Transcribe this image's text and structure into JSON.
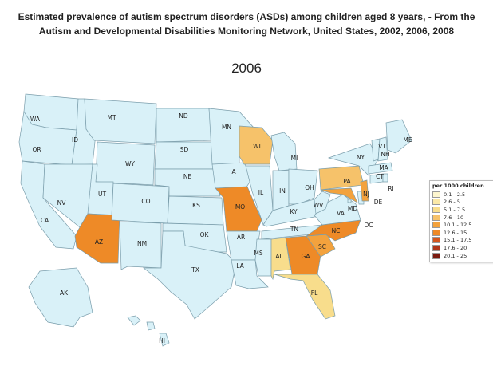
{
  "title": {
    "line1": "Estimated prevalence of autism spectrum disorders (ASDs) among children aged 8 years, - From the",
    "line2": "Autism and Developmental Disabilities Monitoring Network, United States, 2002, 2006, 2008"
  },
  "year": "2006",
  "colors": {
    "no_data": "#d9f1f8",
    "border": "#7a9dab",
    "sea": "#ffffff"
  },
  "legend": {
    "title": "per 1000 children",
    "items": [
      {
        "label": "0.1 - 2.5",
        "color": "#fdf6cf"
      },
      {
        "label": "2.6 - 5",
        "color": "#fbe9a7"
      },
      {
        "label": "5.1 - 7.5",
        "color": "#f8dd8c"
      },
      {
        "label": "7.6 - 10",
        "color": "#f6c26a"
      },
      {
        "label": "10.1 - 12.5",
        "color": "#f3a23d"
      },
      {
        "label": "12.6 - 15",
        "color": "#ee8a27"
      },
      {
        "label": "15.1 - 17.5",
        "color": "#d4561e"
      },
      {
        "label": "17.6 - 20",
        "color": "#b0361a"
      },
      {
        "label": "20.1 - 25",
        "color": "#7a1b10"
      }
    ]
  },
  "states": [
    {
      "abbr": "WA",
      "value_class": null
    },
    {
      "abbr": "OR",
      "value_class": null
    },
    {
      "abbr": "CA",
      "value_class": null
    },
    {
      "abbr": "ID",
      "value_class": null
    },
    {
      "abbr": "NV",
      "value_class": null
    },
    {
      "abbr": "MT",
      "value_class": null
    },
    {
      "abbr": "WY",
      "value_class": null
    },
    {
      "abbr": "UT",
      "value_class": null
    },
    {
      "abbr": "AZ",
      "value_class": "12.6 - 15"
    },
    {
      "abbr": "CO",
      "value_class": null
    },
    {
      "abbr": "NM",
      "value_class": null
    },
    {
      "abbr": "ND",
      "value_class": null
    },
    {
      "abbr": "SD",
      "value_class": null
    },
    {
      "abbr": "NE",
      "value_class": null
    },
    {
      "abbr": "KS",
      "value_class": null
    },
    {
      "abbr": "OK",
      "value_class": null
    },
    {
      "abbr": "TX",
      "value_class": null
    },
    {
      "abbr": "MN",
      "value_class": null
    },
    {
      "abbr": "IA",
      "value_class": null
    },
    {
      "abbr": "MO",
      "value_class": "12.6 - 15"
    },
    {
      "abbr": "AR",
      "value_class": null
    },
    {
      "abbr": "LA",
      "value_class": null
    },
    {
      "abbr": "WI",
      "value_class": "7.6 - 10"
    },
    {
      "abbr": "IL",
      "value_class": null
    },
    {
      "abbr": "MI",
      "value_class": null
    },
    {
      "abbr": "IN",
      "value_class": null
    },
    {
      "abbr": "OH",
      "value_class": null
    },
    {
      "abbr": "KY",
      "value_class": null
    },
    {
      "abbr": "TN",
      "value_class": null
    },
    {
      "abbr": "MS",
      "value_class": null
    },
    {
      "abbr": "AL",
      "value_class": "5.1 - 7.5"
    },
    {
      "abbr": "GA",
      "value_class": "12.6 - 15"
    },
    {
      "abbr": "FL",
      "value_class": "5.1 - 7.5"
    },
    {
      "abbr": "SC",
      "value_class": "10.1 - 12.5"
    },
    {
      "abbr": "NC",
      "value_class": "12.6 - 15"
    },
    {
      "abbr": "VA",
      "value_class": null
    },
    {
      "abbr": "WV",
      "value_class": null
    },
    {
      "abbr": "PA",
      "value_class": "7.6 - 10"
    },
    {
      "abbr": "MD",
      "value_class": "10.1 - 12.5"
    },
    {
      "abbr": "DE",
      "value_class": null
    },
    {
      "abbr": "NJ",
      "value_class": "10.1 - 12.5"
    },
    {
      "abbr": "NY",
      "value_class": null
    },
    {
      "abbr": "CT",
      "value_class": null
    },
    {
      "abbr": "RI",
      "value_class": null
    },
    {
      "abbr": "MA",
      "value_class": null
    },
    {
      "abbr": "VT",
      "value_class": null
    },
    {
      "abbr": "NH",
      "value_class": null
    },
    {
      "abbr": "ME",
      "value_class": null
    },
    {
      "abbr": "DC",
      "value_class": null
    },
    {
      "abbr": "AK",
      "value_class": null
    },
    {
      "abbr": "HI",
      "value_class": null
    }
  ]
}
